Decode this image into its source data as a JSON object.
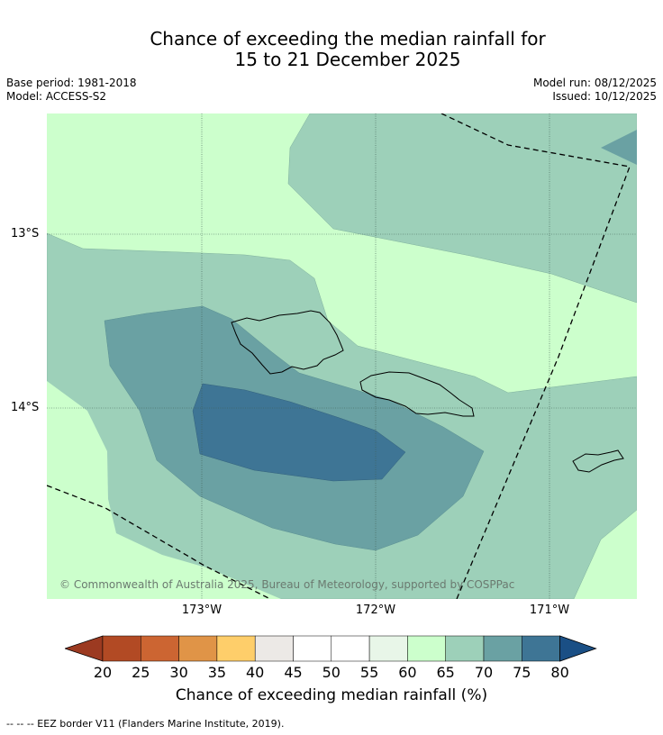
{
  "title": {
    "line1": "Chance of exceeding the median rainfall for",
    "line2": "15 to 21 December 2025"
  },
  "meta": {
    "base_period": "Base period: 1981-2018",
    "model": "Model: ACCESS-S2",
    "model_run": "Model run: 08/12/2025",
    "issued": "Issued: 10/12/2025"
  },
  "map": {
    "lat_labels": [
      "13°S",
      "14°S"
    ],
    "lon_labels": [
      "173°W",
      "172°W",
      "171°W"
    ],
    "copyright": "© Commonwealth of Australia 2025, Bureau of Meteorology, supported by COSPPac"
  },
  "colorbar": {
    "title": "Chance of exceeding median rainfall (%)",
    "ticks": [
      "20",
      "25",
      "30",
      "35",
      "40",
      "45",
      "50",
      "55",
      "60",
      "65",
      "70",
      "75",
      "80"
    ],
    "colors": [
      "#9c3a21",
      "#b24a24",
      "#cc6532",
      "#e09447",
      "#fece6a",
      "#ece9e6",
      "#ffffff",
      "#ffffff",
      "#e8f6e8",
      "#ccffcc",
      "#9dd0b9",
      "#6aa1a3",
      "#3e7595",
      "#1a4f85"
    ]
  },
  "footnote": "--  --  -- EEZ border V11 (Flanders Marine Institute, 2019)."
}
